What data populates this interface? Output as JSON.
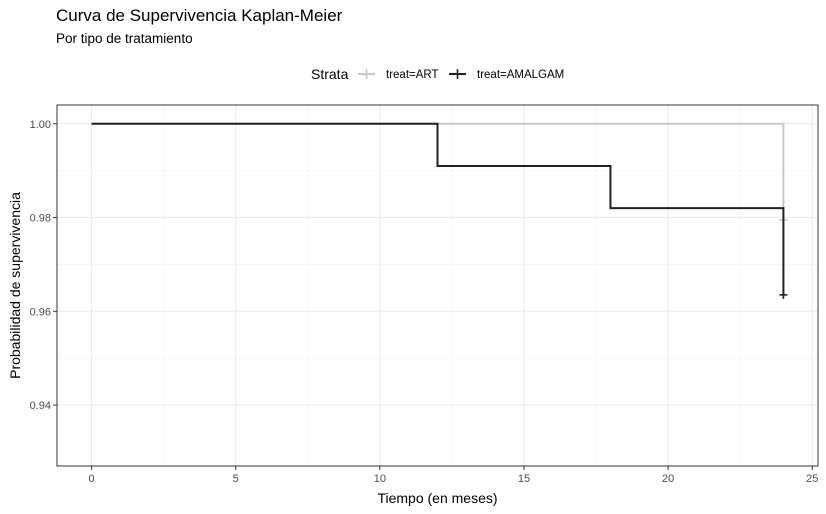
{
  "chart_data": {
    "type": "line",
    "step": true,
    "title": "Curva de Supervivencia Kaplan-Meier",
    "subtitle": "Por tipo de tratamiento",
    "xlabel": "Tiempo (en meses)",
    "ylabel": "Probabilidad de supervivencia",
    "xlim": [
      -1.2,
      25.2
    ],
    "ylim": [
      0.927,
      1.004
    ],
    "x_ticks": [
      0,
      5,
      10,
      15,
      20,
      25
    ],
    "y_ticks": [
      0.94,
      0.96,
      0.98,
      1.0
    ],
    "y_tick_labels": [
      "0.94",
      "0.96",
      "0.98",
      "1.00"
    ],
    "grid": true,
    "legend": {
      "title": "Strata",
      "position": "top",
      "entries": [
        "treat=ART",
        "treat=AMALGAM"
      ]
    },
    "series": [
      {
        "name": "treat=ART",
        "color": "#c8c8c8",
        "x": [
          0,
          24,
          24
        ],
        "y": [
          1.0,
          1.0,
          0.9795
        ],
        "censor_marks": [
          {
            "x": 24,
            "y": 0.9795
          }
        ]
      },
      {
        "name": "treat=AMALGAM",
        "color": "#222222",
        "x": [
          0,
          12,
          12,
          18,
          18,
          24,
          24
        ],
        "y": [
          1.0,
          1.0,
          0.991,
          0.991,
          0.982,
          0.982,
          0.9635
        ],
        "censor_marks": [
          {
            "x": 24,
            "y": 0.9635
          }
        ]
      }
    ]
  }
}
